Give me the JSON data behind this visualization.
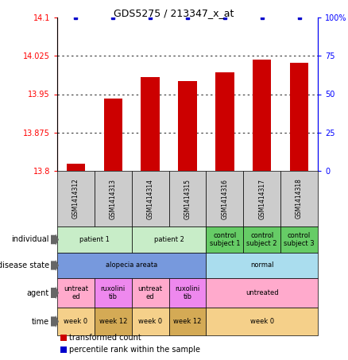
{
  "title": "GDS5275 / 213347_x_at",
  "samples": [
    "GSM1414312",
    "GSM1414313",
    "GSM1414314",
    "GSM1414315",
    "GSM1414316",
    "GSM1414317",
    "GSM1414318"
  ],
  "bar_values": [
    13.814,
    13.942,
    13.983,
    13.975,
    13.993,
    14.018,
    14.012
  ],
  "percentile_values": [
    100,
    100,
    100,
    100,
    100,
    100,
    100
  ],
  "ylim_left": [
    13.8,
    14.1
  ],
  "ylim_right": [
    0,
    100
  ],
  "yticks_left": [
    13.8,
    13.875,
    13.95,
    14.025,
    14.1
  ],
  "yticks_right": [
    0,
    25,
    50,
    75,
    100
  ],
  "bar_color": "#cc0000",
  "dot_color": "#0000cc",
  "annotation_rows": [
    {
      "label": "individual",
      "cells": [
        {
          "text": "patient 1",
          "span": 2,
          "color": "#c8edc8"
        },
        {
          "text": "patient 2",
          "span": 2,
          "color": "#c8edc8"
        },
        {
          "text": "control\nsubject 1",
          "span": 1,
          "color": "#66cc66"
        },
        {
          "text": "control\nsubject 2",
          "span": 1,
          "color": "#66cc66"
        },
        {
          "text": "control\nsubject 3",
          "span": 1,
          "color": "#66cc66"
        }
      ]
    },
    {
      "label": "disease state",
      "cells": [
        {
          "text": "alopecia areata",
          "span": 4,
          "color": "#7799dd"
        },
        {
          "text": "normal",
          "span": 3,
          "color": "#aaddee"
        }
      ]
    },
    {
      "label": "agent",
      "cells": [
        {
          "text": "untreat\ned",
          "span": 1,
          "color": "#ffaacc"
        },
        {
          "text": "ruxolini\ntib",
          "span": 1,
          "color": "#ee88ee"
        },
        {
          "text": "untreat\ned",
          "span": 1,
          "color": "#ffaacc"
        },
        {
          "text": "ruxolini\ntib",
          "span": 1,
          "color": "#ee88ee"
        },
        {
          "text": "untreated",
          "span": 3,
          "color": "#ffaacc"
        }
      ]
    },
    {
      "label": "time",
      "cells": [
        {
          "text": "week 0",
          "span": 1,
          "color": "#f5d08a"
        },
        {
          "text": "week 12",
          "span": 1,
          "color": "#d4aa55"
        },
        {
          "text": "week 0",
          "span": 1,
          "color": "#f5d08a"
        },
        {
          "text": "week 12",
          "span": 1,
          "color": "#d4aa55"
        },
        {
          "text": "week 0",
          "span": 3,
          "color": "#f5d08a"
        }
      ]
    }
  ],
  "legend_items": [
    {
      "label": "transformed count",
      "color": "#cc0000"
    },
    {
      "label": "percentile rank within the sample",
      "color": "#0000cc"
    }
  ],
  "sample_box_color": "#cccccc",
  "fig_width": 4.38,
  "fig_height": 4.53,
  "dpi": 100
}
